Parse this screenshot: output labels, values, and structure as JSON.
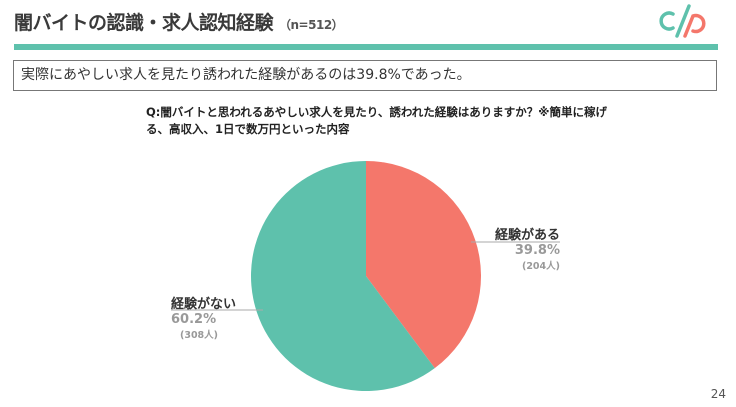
{
  "header": {
    "title": "闇バイトの認識・求人認知経験",
    "sample": "（n=512）"
  },
  "summary": "実際にあやしい求人を見たり誘われた経験があるのは39.8%であった。",
  "page_number": "24",
  "colors": {
    "accent": "#5ec1ac",
    "coral": "#f4776b"
  },
  "chart_data": {
    "type": "pie",
    "title": "Q:闇バイトと思われるあやしい求人を見たり、誘われた経験はありますか？※簡単に稼げる、高収入、1日で数万円といった内容",
    "slices": [
      {
        "label": "経験がある",
        "percent": 39.8,
        "percent_label": "39.8%",
        "count_label": "(204人)",
        "color": "#f4776b"
      },
      {
        "label": "経験がない",
        "percent": 60.2,
        "percent_label": "60.2%",
        "count_label": "(308人)",
        "color": "#5ec1ac"
      }
    ]
  }
}
